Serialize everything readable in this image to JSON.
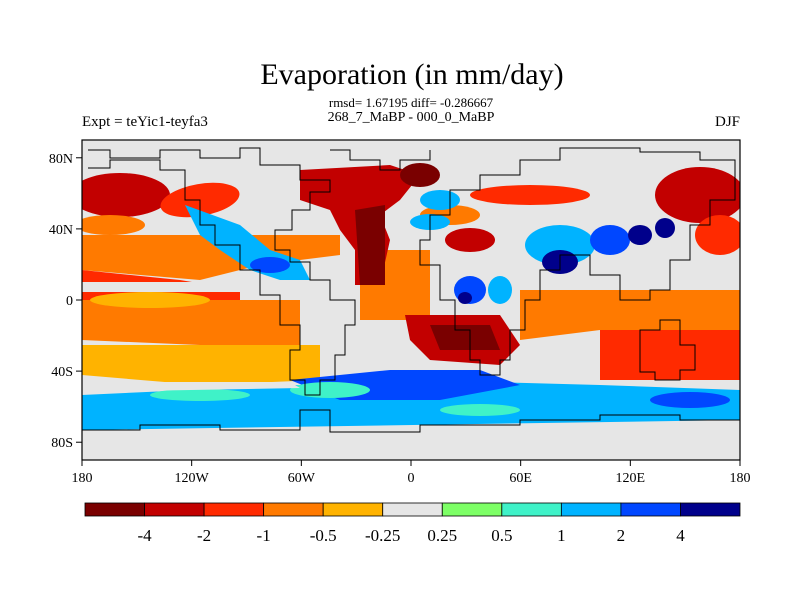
{
  "title": "Evaporation (in mm/day)",
  "stats_line": "rmsd= 1.67195 diff= -0.286667",
  "comparison": "268_7_MaBP - 000_0_MaBP",
  "experiment": "Expt = teYic1-teyfa3",
  "season": "DJF",
  "map": {
    "type": "filled-contour-map",
    "projection": "cylindrical-equidistant",
    "lon_range": [
      -180,
      180
    ],
    "lat_range": [
      -90,
      90
    ],
    "lon_ticks": [
      "180",
      "120W",
      "60W",
      "0",
      "60E",
      "120E",
      "180"
    ],
    "lat_ticks": [
      "80N",
      "40N",
      "0",
      "40S",
      "80S"
    ]
  },
  "colorbar": {
    "labels": [
      "-4",
      "-2",
      "-1",
      "-0.5",
      "-0.25",
      "0.25",
      "0.5",
      "1",
      "2",
      "4"
    ],
    "colors": [
      "#7a0000",
      "#c20000",
      "#ff2a00",
      "#ff7a00",
      "#ffb300",
      "#e6e6e6",
      "#7dff66",
      "#3ff2c8",
      "#00b3ff",
      "#0047ff",
      "#00008b"
    ]
  }
}
